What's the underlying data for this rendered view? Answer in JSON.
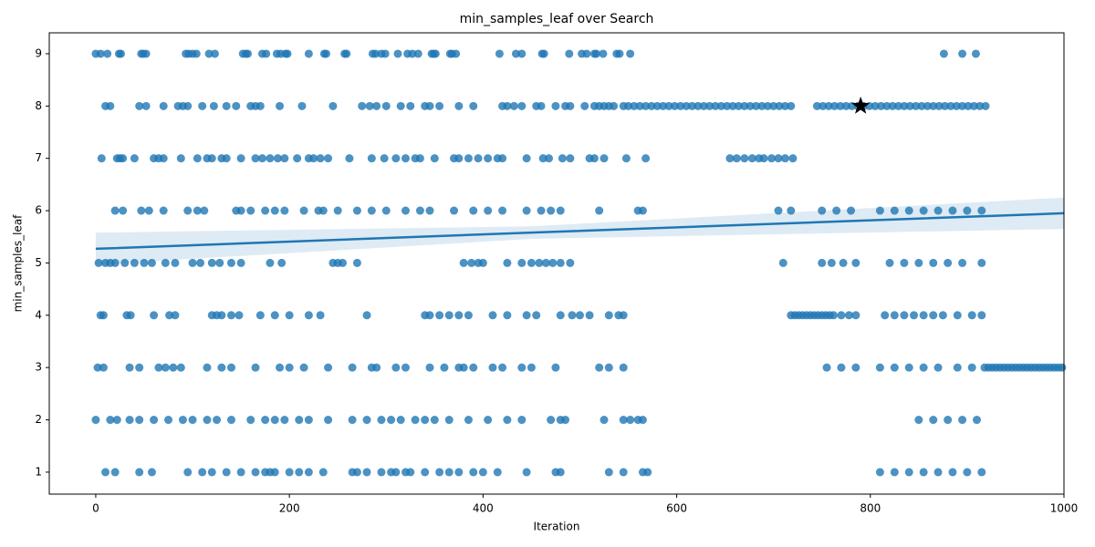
{
  "chart_data": {
    "type": "scatter",
    "title": "min_samples_leaf over Search",
    "x_label": "Iteration",
    "y_label": "min_samples_leaf",
    "color": "#1f77b4",
    "x": [
      0,
      5,
      12,
      24,
      26,
      47,
      49,
      52,
      93,
      96,
      100,
      104,
      117,
      123,
      152,
      155,
      157,
      172,
      176,
      187,
      191,
      196,
      198,
      220,
      236,
      238,
      257,
      259,
      286,
      289,
      295,
      299,
      312,
      322,
      327,
      333,
      347,
      349,
      351,
      366,
      368,
      372,
      417,
      434,
      440,
      461,
      463,
      489,
      502,
      507,
      515,
      517,
      524,
      538,
      541,
      552,
      876,
      895,
      909,
      10,
      15,
      45,
      52,
      70,
      85,
      90,
      95,
      110,
      122,
      135,
      145,
      160,
      165,
      170,
      190,
      213,
      245,
      275,
      283,
      290,
      300,
      315,
      325,
      340,
      345,
      355,
      375,
      390,
      420,
      425,
      432,
      440,
      455,
      460,
      475,
      485,
      490,
      505,
      515,
      520,
      525,
      530,
      535,
      545,
      550,
      556,
      562,
      568,
      574,
      580,
      586,
      592,
      598,
      604,
      610,
      616,
      622,
      628,
      634,
      640,
      646,
      652,
      658,
      664,
      670,
      676,
      682,
      688,
      694,
      700,
      706,
      712,
      718,
      745,
      751,
      757,
      763,
      769,
      775,
      781,
      787,
      793,
      799,
      805,
      811,
      817,
      823,
      829,
      835,
      841,
      847,
      853,
      859,
      865,
      871,
      877,
      883,
      889,
      895,
      901,
      907,
      913,
      919,
      6,
      22,
      25,
      28,
      40,
      60,
      65,
      70,
      88,
      105,
      115,
      120,
      130,
      135,
      150,
      165,
      172,
      180,
      188,
      195,
      208,
      220,
      225,
      232,
      240,
      262,
      285,
      298,
      310,
      320,
      330,
      335,
      350,
      370,
      375,
      385,
      395,
      405,
      415,
      420,
      445,
      462,
      468,
      482,
      490,
      510,
      515,
      525,
      548,
      568,
      655,
      662,
      670,
      678,
      685,
      690,
      698,
      705,
      712,
      720,
      20,
      28,
      47,
      55,
      70,
      95,
      105,
      112,
      145,
      150,
      160,
      175,
      185,
      195,
      215,
      230,
      235,
      250,
      270,
      285,
      300,
      320,
      335,
      345,
      370,
      390,
      405,
      420,
      445,
      460,
      470,
      480,
      520,
      560,
      565,
      705,
      718,
      750,
      765,
      780,
      810,
      825,
      840,
      855,
      870,
      885,
      900,
      915,
      3,
      10,
      15,
      20,
      30,
      40,
      50,
      58,
      72,
      82,
      100,
      108,
      120,
      128,
      140,
      150,
      180,
      192,
      245,
      250,
      255,
      270,
      380,
      388,
      395,
      400,
      425,
      440,
      450,
      458,
      465,
      472,
      480,
      490,
      710,
      750,
      760,
      772,
      785,
      820,
      835,
      850,
      865,
      880,
      895,
      915,
      5,
      8,
      32,
      36,
      60,
      76,
      82,
      120,
      125,
      130,
      140,
      148,
      170,
      185,
      200,
      220,
      232,
      280,
      340,
      345,
      355,
      365,
      375,
      385,
      410,
      425,
      445,
      455,
      480,
      492,
      500,
      510,
      530,
      540,
      545,
      718,
      722,
      726,
      730,
      734,
      738,
      742,
      746,
      750,
      754,
      758,
      762,
      770,
      778,
      785,
      815,
      825,
      835,
      845,
      855,
      865,
      875,
      890,
      905,
      915,
      2,
      8,
      35,
      45,
      65,
      72,
      80,
      88,
      115,
      130,
      140,
      165,
      190,
      200,
      215,
      240,
      265,
      285,
      290,
      310,
      320,
      345,
      360,
      375,
      380,
      390,
      410,
      420,
      440,
      450,
      475,
      520,
      530,
      545,
      755,
      770,
      785,
      810,
      825,
      840,
      855,
      870,
      890,
      905,
      918,
      922,
      926,
      930,
      934,
      938,
      942,
      946,
      950,
      954,
      958,
      962,
      966,
      970,
      974,
      978,
      982,
      986,
      990,
      994,
      998,
      0,
      15,
      22,
      35,
      45,
      60,
      75,
      90,
      100,
      115,
      125,
      140,
      160,
      175,
      185,
      195,
      210,
      220,
      240,
      265,
      280,
      295,
      305,
      315,
      330,
      340,
      350,
      365,
      385,
      405,
      425,
      440,
      470,
      480,
      485,
      525,
      545,
      552,
      560,
      565,
      850,
      865,
      880,
      895,
      910,
      10,
      20,
      45,
      58,
      95,
      110,
      120,
      135,
      150,
      165,
      175,
      180,
      185,
      200,
      210,
      220,
      235,
      265,
      270,
      280,
      295,
      305,
      310,
      320,
      325,
      340,
      355,
      365,
      375,
      390,
      400,
      415,
      445,
      475,
      480,
      530,
      545,
      565,
      570,
      810,
      825,
      840,
      855,
      870,
      885,
      900,
      915
    ],
    "values": [
      9,
      9,
      9,
      9,
      9,
      9,
      9,
      9,
      9,
      9,
      9,
      9,
      9,
      9,
      9,
      9,
      9,
      9,
      9,
      9,
      9,
      9,
      9,
      9,
      9,
      9,
      9,
      9,
      9,
      9,
      9,
      9,
      9,
      9,
      9,
      9,
      9,
      9,
      9,
      9,
      9,
      9,
      9,
      9,
      9,
      9,
      9,
      9,
      9,
      9,
      9,
      9,
      9,
      9,
      9,
      9,
      9,
      9,
      9,
      8,
      8,
      8,
      8,
      8,
      8,
      8,
      8,
      8,
      8,
      8,
      8,
      8,
      8,
      8,
      8,
      8,
      8,
      8,
      8,
      8,
      8,
      8,
      8,
      8,
      8,
      8,
      8,
      8,
      8,
      8,
      8,
      8,
      8,
      8,
      8,
      8,
      8,
      8,
      8,
      8,
      8,
      8,
      8,
      8,
      8,
      8,
      8,
      8,
      8,
      8,
      8,
      8,
      8,
      8,
      8,
      8,
      8,
      8,
      8,
      8,
      8,
      8,
      8,
      8,
      8,
      8,
      8,
      8,
      8,
      8,
      8,
      8,
      8,
      8,
      8,
      8,
      8,
      8,
      8,
      8,
      8,
      8,
      8,
      8,
      8,
      8,
      8,
      8,
      8,
      8,
      8,
      8,
      8,
      8,
      8,
      8,
      8,
      8,
      8,
      8,
      8,
      8,
      8,
      7,
      7,
      7,
      7,
      7,
      7,
      7,
      7,
      7,
      7,
      7,
      7,
      7,
      7,
      7,
      7,
      7,
      7,
      7,
      7,
      7,
      7,
      7,
      7,
      7,
      7,
      7,
      7,
      7,
      7,
      7,
      7,
      7,
      7,
      7,
      7,
      7,
      7,
      7,
      7,
      7,
      7,
      7,
      7,
      7,
      7,
      7,
      7,
      7,
      7,
      7,
      7,
      7,
      7,
      7,
      7,
      7,
      7,
      7,
      7,
      6,
      6,
      6,
      6,
      6,
      6,
      6,
      6,
      6,
      6,
      6,
      6,
      6,
      6,
      6,
      6,
      6,
      6,
      6,
      6,
      6,
      6,
      6,
      6,
      6,
      6,
      6,
      6,
      6,
      6,
      6,
      6,
      6,
      6,
      6,
      6,
      6,
      6,
      6,
      6,
      6,
      6,
      6,
      6,
      6,
      6,
      6,
      6,
      5,
      5,
      5,
      5,
      5,
      5,
      5,
      5,
      5,
      5,
      5,
      5,
      5,
      5,
      5,
      5,
      5,
      5,
      5,
      5,
      5,
      5,
      5,
      5,
      5,
      5,
      5,
      5,
      5,
      5,
      5,
      5,
      5,
      5,
      5,
      5,
      5,
      5,
      5,
      5,
      5,
      5,
      5,
      5,
      5,
      5,
      4,
      4,
      4,
      4,
      4,
      4,
      4,
      4,
      4,
      4,
      4,
      4,
      4,
      4,
      4,
      4,
      4,
      4,
      4,
      4,
      4,
      4,
      4,
      4,
      4,
      4,
      4,
      4,
      4,
      4,
      4,
      4,
      4,
      4,
      4,
      4,
      4,
      4,
      4,
      4,
      4,
      4,
      4,
      4,
      4,
      4,
      4,
      4,
      4,
      4,
      4,
      4,
      4,
      4,
      4,
      4,
      4,
      4,
      4,
      4,
      3,
      3,
      3,
      3,
      3,
      3,
      3,
      3,
      3,
      3,
      3,
      3,
      3,
      3,
      3,
      3,
      3,
      3,
      3,
      3,
      3,
      3,
      3,
      3,
      3,
      3,
      3,
      3,
      3,
      3,
      3,
      3,
      3,
      3,
      3,
      3,
      3,
      3,
      3,
      3,
      3,
      3,
      3,
      3,
      3,
      3,
      3,
      3,
      3,
      3,
      3,
      3,
      3,
      3,
      3,
      3,
      3,
      3,
      3,
      3,
      3,
      3,
      3,
      3,
      3,
      2,
      2,
      2,
      2,
      2,
      2,
      2,
      2,
      2,
      2,
      2,
      2,
      2,
      2,
      2,
      2,
      2,
      2,
      2,
      2,
      2,
      2,
      2,
      2,
      2,
      2,
      2,
      2,
      2,
      2,
      2,
      2,
      2,
      2,
      2,
      2,
      2,
      2,
      2,
      2,
      2,
      2,
      2,
      2,
      2,
      1,
      1,
      1,
      1,
      1,
      1,
      1,
      1,
      1,
      1,
      1,
      1,
      1,
      1,
      1,
      1,
      1,
      1,
      1,
      1,
      1,
      1,
      1,
      1,
      1,
      1,
      1,
      1,
      1,
      1,
      1,
      1,
      1,
      1,
      1,
      1,
      1,
      1,
      1,
      1,
      1,
      1,
      1,
      1,
      1,
      1,
      1
    ],
    "regression": {
      "x": [
        0,
        450,
        1000
      ],
      "values": [
        5.27,
        5.58,
        5.95
      ],
      "lower": [
        4.97,
        5.46,
        5.65
      ],
      "upper": [
        5.58,
        5.7,
        6.25
      ],
      "color": "#1f77b4"
    },
    "best": {
      "x": 790,
      "y": 8,
      "color": "#000000"
    },
    "xlim": [
      -48,
      1000
    ],
    "ylim": [
      0.58,
      9.4
    ],
    "xticks": [
      0,
      200,
      400,
      600,
      800,
      1000
    ],
    "yticks": [
      1,
      2,
      3,
      4,
      5,
      6,
      7,
      8,
      9
    ]
  }
}
